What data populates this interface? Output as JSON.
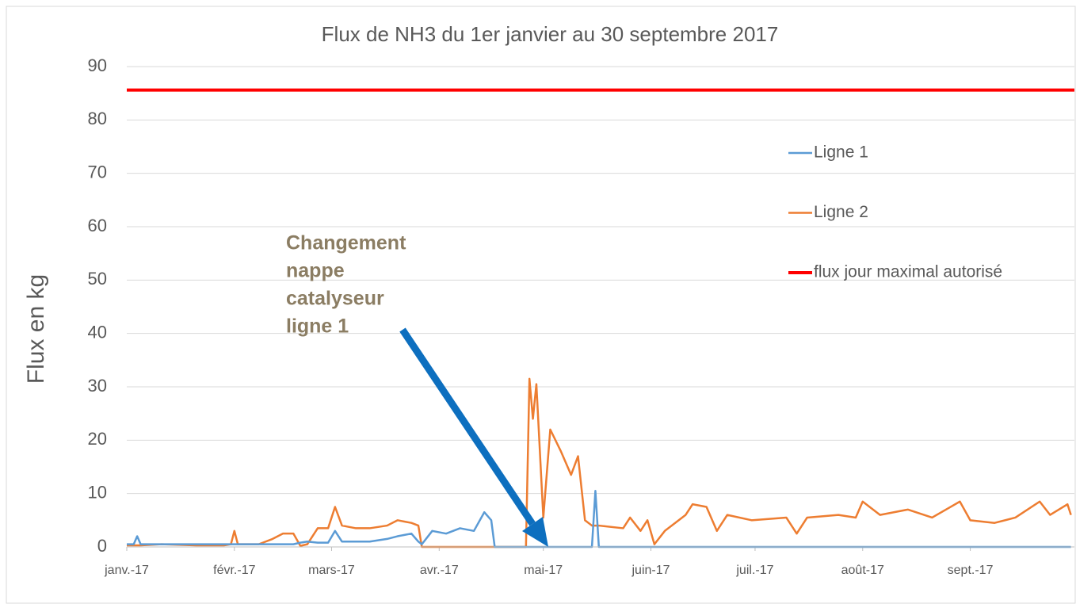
{
  "chart_data": {
    "type": "line",
    "title": "Flux de NH3 du 1er janvier au 30 septembre 2017",
    "y_label": "Flux en kg",
    "annotation_lines": [
      "Changement",
      "nappe",
      "catalyseur",
      "ligne 1"
    ],
    "x": [
      0,
      2,
      3,
      4,
      10,
      20,
      28,
      30,
      31,
      32,
      38,
      42,
      45,
      48,
      50,
      52,
      55,
      58,
      60,
      62,
      66,
      70,
      75,
      78,
      82,
      84,
      85,
      88,
      92,
      96,
      100,
      103,
      105,
      106,
      115,
      116,
      117,
      118,
      120,
      122,
      125,
      128,
      130,
      132,
      134,
      135,
      136,
      143,
      145,
      148,
      150,
      152,
      155,
      161,
      163,
      167,
      170,
      173,
      180,
      190,
      193,
      196,
      205,
      210,
      212,
      217,
      225,
      232,
      240,
      243,
      250,
      256,
      263,
      266,
      271,
      272
    ],
    "series": [
      {
        "name": "Ligne 1",
        "color": "#5b9bd5",
        "values": [
          0.5,
          0.5,
          2,
          0.5,
          0.5,
          0.5,
          0.5,
          0.5,
          0.5,
          0.5,
          0.5,
          0.5,
          0.5,
          0.5,
          0.8,
          1,
          0.8,
          0.8,
          3,
          1,
          1,
          1,
          1.5,
          2,
          2.5,
          1,
          0.5,
          3,
          2.5,
          3.5,
          3,
          6.5,
          5,
          0,
          0,
          0,
          0,
          0,
          0,
          0,
          0,
          0,
          0,
          0,
          0,
          10.5,
          0,
          0,
          0,
          0,
          0,
          0,
          0,
          0,
          0,
          0,
          0,
          0,
          0,
          0,
          0,
          0,
          0,
          0,
          0,
          0,
          0,
          0,
          0,
          0,
          0,
          0,
          0,
          0,
          0,
          0
        ]
      },
      {
        "name": "Ligne 2",
        "color": "#ed7d31",
        "values": [
          0.3,
          0.3,
          0.3,
          0.3,
          0.5,
          0.3,
          0.3,
          0.5,
          3,
          0.5,
          0.5,
          1.5,
          2.5,
          2.5,
          0.2,
          0.5,
          3.5,
          3.5,
          7.5,
          4,
          3.5,
          3.5,
          4,
          5,
          4.5,
          4,
          0,
          0,
          0,
          0,
          0,
          0,
          0,
          0,
          0,
          31.5,
          24,
          30.5,
          5.5,
          22,
          18,
          13.5,
          17,
          5,
          4,
          4,
          4,
          3.5,
          5.5,
          3,
          5,
          0.5,
          3,
          6,
          8,
          7.5,
          3,
          6,
          5,
          5.5,
          2.5,
          5.5,
          6,
          5.5,
          8.5,
          6,
          7,
          5.5,
          8.5,
          5,
          4.5,
          5.5,
          8.5,
          6,
          8,
          6
        ]
      }
    ],
    "hlines": [
      {
        "name": "flux jour maximal autorisé",
        "color": "#ff0000",
        "value": 85.6
      }
    ],
    "xlim": [
      0,
      273
    ],
    "xticks": [
      {
        "value": 0,
        "label": "janv.-17"
      },
      {
        "value": 31,
        "label": "févr.-17"
      },
      {
        "value": 59,
        "label": "mars-17"
      },
      {
        "value": 90,
        "label": "avr.-17"
      },
      {
        "value": 120,
        "label": "mai-17"
      },
      {
        "value": 151,
        "label": "juin-17"
      },
      {
        "value": 181,
        "label": "juil.-17"
      },
      {
        "value": 212,
        "label": "août-17"
      },
      {
        "value": 243,
        "label": "sept.-17"
      }
    ],
    "ylim": [
      0,
      90
    ],
    "yticks": [
      0,
      10,
      20,
      30,
      40,
      50,
      60,
      70,
      80,
      90
    ],
    "grid": true
  }
}
